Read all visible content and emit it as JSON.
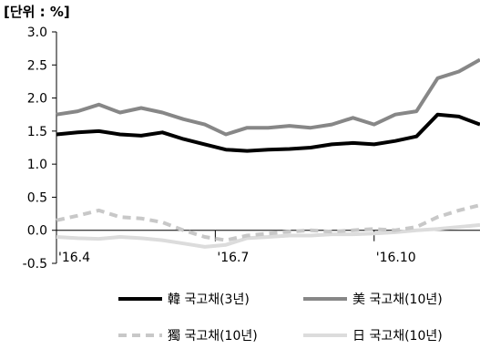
{
  "chart_data": {
    "type": "line",
    "unit_label": "[단위 : %]",
    "ylim": [
      -0.5,
      3.0
    ],
    "yticks": [
      "3.0",
      "2.5",
      "2.0",
      "1.5",
      "1.0",
      "0.5",
      "0.0",
      "-0.5"
    ],
    "ytick_values": [
      3.0,
      2.5,
      2.0,
      1.5,
      1.0,
      0.5,
      0.0,
      -0.5
    ],
    "x_ticks": [
      "'16.4",
      "'16.7",
      "'16.10"
    ],
    "x_tick_positions": [
      0.0,
      0.375,
      0.75
    ],
    "grid": false,
    "legend_position": "bottom",
    "series": [
      {
        "name": "韓 국고채(3년)",
        "color": "#000000",
        "dash": "solid",
        "x": [
          0.0,
          0.05,
          0.1,
          0.15,
          0.2,
          0.25,
          0.3,
          0.35,
          0.4,
          0.45,
          0.5,
          0.55,
          0.6,
          0.65,
          0.7,
          0.75,
          0.8,
          0.85,
          0.9,
          0.95,
          1.0
        ],
        "values": [
          1.45,
          1.48,
          1.5,
          1.45,
          1.43,
          1.48,
          1.38,
          1.3,
          1.22,
          1.2,
          1.22,
          1.23,
          1.25,
          1.3,
          1.32,
          1.3,
          1.35,
          1.42,
          1.75,
          1.72,
          1.6
        ]
      },
      {
        "name": "美 국고채(10년)",
        "color": "#878787",
        "dash": "solid",
        "x": [
          0.0,
          0.05,
          0.1,
          0.15,
          0.2,
          0.25,
          0.3,
          0.35,
          0.4,
          0.45,
          0.5,
          0.55,
          0.6,
          0.65,
          0.7,
          0.75,
          0.8,
          0.85,
          0.9,
          0.95,
          1.0
        ],
        "values": [
          1.75,
          1.8,
          1.9,
          1.78,
          1.85,
          1.78,
          1.68,
          1.6,
          1.45,
          1.55,
          1.55,
          1.58,
          1.55,
          1.6,
          1.7,
          1.6,
          1.75,
          1.8,
          2.3,
          2.4,
          2.58
        ]
      },
      {
        "name": "獨 국고채(10년)",
        "color": "#c8c8c8",
        "dash": "dashed",
        "x": [
          0.0,
          0.05,
          0.1,
          0.15,
          0.2,
          0.25,
          0.3,
          0.35,
          0.4,
          0.45,
          0.5,
          0.55,
          0.6,
          0.65,
          0.7,
          0.75,
          0.8,
          0.85,
          0.9,
          0.95,
          1.0
        ],
        "values": [
          0.15,
          0.22,
          0.3,
          0.2,
          0.18,
          0.12,
          0.0,
          -0.1,
          -0.15,
          -0.08,
          -0.05,
          -0.02,
          0.0,
          -0.02,
          0.0,
          0.02,
          0.0,
          0.05,
          0.2,
          0.3,
          0.38
        ]
      },
      {
        "name": "日 국고채(10년)",
        "color": "#dcdcdc",
        "dash": "solid",
        "x": [
          0.0,
          0.05,
          0.1,
          0.15,
          0.2,
          0.25,
          0.3,
          0.35,
          0.4,
          0.45,
          0.5,
          0.55,
          0.6,
          0.65,
          0.7,
          0.75,
          0.8,
          0.85,
          0.9,
          0.95,
          1.0
        ],
        "values": [
          -0.1,
          -0.12,
          -0.13,
          -0.1,
          -0.12,
          -0.15,
          -0.2,
          -0.25,
          -0.22,
          -0.12,
          -0.1,
          -0.08,
          -0.08,
          -0.06,
          -0.06,
          -0.05,
          -0.03,
          0.0,
          0.02,
          0.05,
          0.08
        ]
      }
    ]
  },
  "legend": {
    "items": [
      "韓 국고채(3년)",
      "美 국고채(10년)",
      "獨 국고채(10년)",
      "日 국고채(10년)"
    ]
  }
}
